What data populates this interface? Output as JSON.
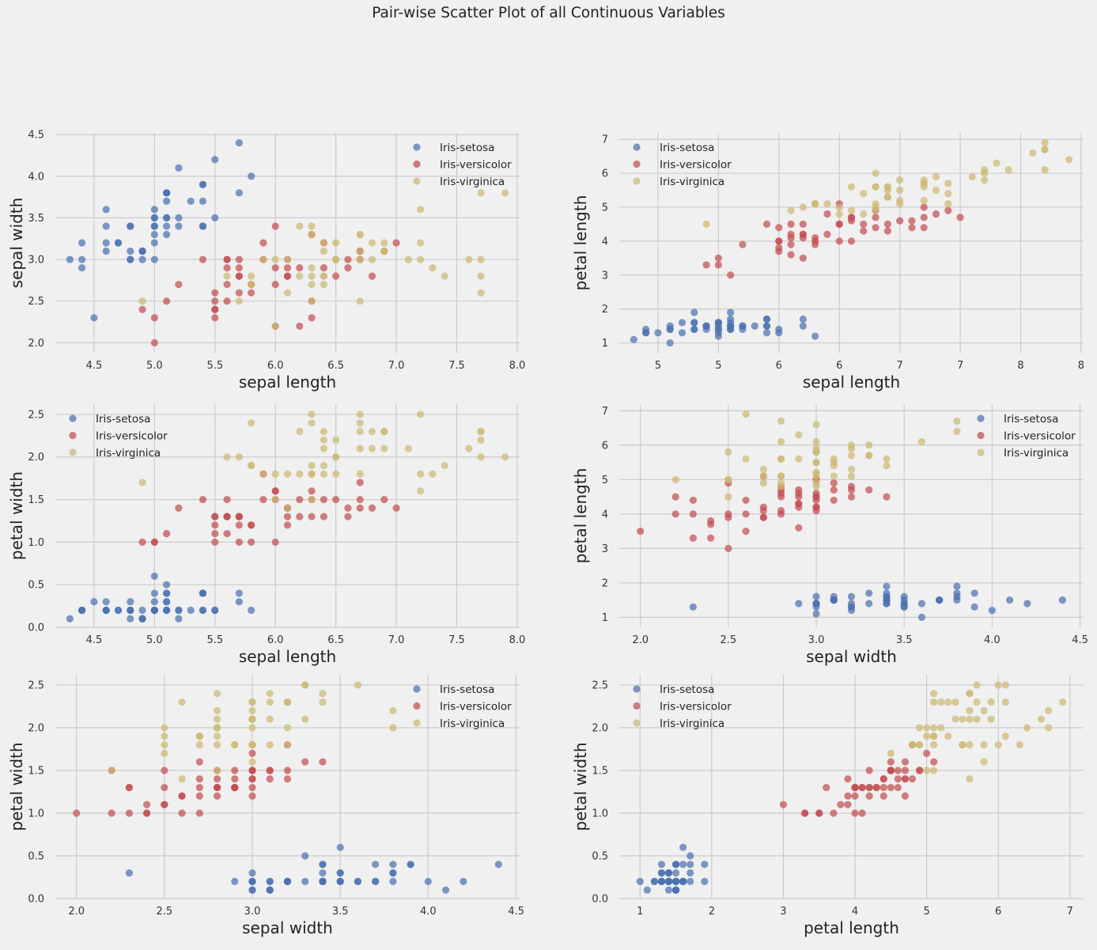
{
  "figure": {
    "title": "Pair-wise Scatter Plot of all Continuous Variables",
    "background": "#f0f0f0",
    "grid_color": "#cbcbcb",
    "colors": {
      "Iris-setosa": "#4c72b0",
      "Iris-versicolor": "#c44e52",
      "Iris-virginica": "#ccb974"
    }
  },
  "chart_data": [
    {
      "type": "scatter",
      "title": "",
      "xlabel": "sepal length",
      "ylabel": "sepal width",
      "x_field": "sepal_length",
      "y_field": "sepal_width",
      "xlim": [
        4.18,
        8.02
      ],
      "ylim": [
        1.88,
        4.52
      ],
      "xticks": [
        4.5,
        5.0,
        5.5,
        6.0,
        6.5,
        7.0,
        7.5,
        8.0
      ],
      "yticks": [
        2.0,
        2.5,
        3.0,
        3.5,
        4.0,
        4.5
      ],
      "tick_decimals": 1,
      "grid": true,
      "legend_position": "upper right",
      "legend": [
        "Iris-setosa",
        "Iris-versicolor",
        "Iris-virginica"
      ]
    },
    {
      "type": "scatter",
      "title": "",
      "xlabel": "sepal length",
      "ylabel": "petal length",
      "x_field": "sepal_length",
      "y_field": "petal_length",
      "xlim": [
        4.18,
        8.02
      ],
      "ylim": [
        0.71,
        7.19
      ],
      "xticks": [
        4.5,
        5.0,
        5.5,
        6.0,
        6.5,
        7.0,
        7.5,
        8.0
      ],
      "yticks": [
        1,
        2,
        3,
        4,
        5,
        6,
        7
      ],
      "tick_decimals": 0,
      "grid": true,
      "legend_position": "upper left",
      "legend": [
        "Iris-setosa",
        "Iris-versicolor",
        "Iris-virginica"
      ]
    },
    {
      "type": "scatter",
      "title": "",
      "xlabel": "sepal length",
      "ylabel": "petal width",
      "x_field": "sepal_length",
      "y_field": "petal_width",
      "xlim": [
        4.18,
        8.02
      ],
      "ylim": [
        0.0,
        2.62
      ],
      "xticks": [
        4.5,
        5.0,
        5.5,
        6.0,
        6.5,
        7.0,
        7.5,
        8.0
      ],
      "yticks": [
        0.0,
        0.5,
        1.0,
        1.5,
        2.0,
        2.5
      ],
      "tick_decimals": 1,
      "grid": true,
      "legend_position": "upper left",
      "legend": [
        "Iris-setosa",
        "Iris-versicolor",
        "Iris-virginica"
      ]
    },
    {
      "type": "scatter",
      "title": "",
      "xlabel": "sepal width",
      "ylabel": "petal length",
      "x_field": "sepal_width",
      "y_field": "petal_length",
      "xlim": [
        1.88,
        4.52
      ],
      "ylim": [
        0.71,
        7.19
      ],
      "xticks": [
        2.0,
        2.5,
        3.0,
        3.5,
        4.0,
        4.5
      ],
      "yticks": [
        1,
        2,
        3,
        4,
        5,
        6,
        7
      ],
      "tick_decimals": 1,
      "ytick_decimals": 0,
      "grid": true,
      "legend_position": "upper right",
      "legend": [
        "Iris-setosa",
        "Iris-versicolor",
        "Iris-virginica"
      ]
    },
    {
      "type": "scatter",
      "title": "",
      "xlabel": "sepal width",
      "ylabel": "petal width",
      "x_field": "sepal_width",
      "y_field": "petal_width",
      "xlim": [
        1.88,
        4.52
      ],
      "ylim": [
        0.0,
        2.62
      ],
      "xticks": [
        2.0,
        2.5,
        3.0,
        3.5,
        4.0,
        4.5
      ],
      "yticks": [
        0.0,
        0.5,
        1.0,
        1.5,
        2.0,
        2.5
      ],
      "tick_decimals": 1,
      "grid": true,
      "legend_position": "upper right",
      "legend": [
        "Iris-setosa",
        "Iris-versicolor",
        "Iris-virginica"
      ]
    },
    {
      "type": "scatter",
      "title": "",
      "xlabel": "petal length",
      "ylabel": "petal width",
      "x_field": "petal_length",
      "y_field": "petal_width",
      "xlim": [
        0.71,
        7.19
      ],
      "ylim": [
        0.0,
        2.62
      ],
      "xticks": [
        1,
        2,
        3,
        4,
        5,
        6,
        7
      ],
      "yticks": [
        0.0,
        0.5,
        1.0,
        1.5,
        2.0,
        2.5
      ],
      "tick_decimals": 0,
      "ytick_decimals": 1,
      "grid": true,
      "legend_position": "upper left",
      "legend": [
        "Iris-setosa",
        "Iris-versicolor",
        "Iris-virginica"
      ]
    }
  ],
  "dataset": {
    "fields": [
      "sepal_length",
      "sepal_width",
      "petal_length",
      "petal_width"
    ],
    "series": [
      {
        "name": "Iris-setosa",
        "points": [
          [
            5.1,
            3.5,
            1.4,
            0.2
          ],
          [
            4.9,
            3.0,
            1.4,
            0.2
          ],
          [
            4.7,
            3.2,
            1.3,
            0.2
          ],
          [
            4.6,
            3.1,
            1.5,
            0.2
          ],
          [
            5.0,
            3.6,
            1.4,
            0.2
          ],
          [
            5.4,
            3.9,
            1.7,
            0.4
          ],
          [
            4.6,
            3.4,
            1.4,
            0.3
          ],
          [
            5.0,
            3.4,
            1.5,
            0.2
          ],
          [
            4.4,
            2.9,
            1.4,
            0.2
          ],
          [
            4.9,
            3.1,
            1.5,
            0.1
          ],
          [
            5.4,
            3.7,
            1.5,
            0.2
          ],
          [
            4.8,
            3.4,
            1.6,
            0.2
          ],
          [
            4.8,
            3.0,
            1.4,
            0.1
          ],
          [
            4.3,
            3.0,
            1.1,
            0.1
          ],
          [
            5.8,
            4.0,
            1.2,
            0.2
          ],
          [
            5.7,
            4.4,
            1.5,
            0.4
          ],
          [
            5.4,
            3.9,
            1.3,
            0.4
          ],
          [
            5.1,
            3.5,
            1.4,
            0.3
          ],
          [
            5.7,
            3.8,
            1.7,
            0.3
          ],
          [
            5.1,
            3.8,
            1.5,
            0.3
          ],
          [
            5.4,
            3.4,
            1.7,
            0.2
          ],
          [
            5.1,
            3.7,
            1.5,
            0.4
          ],
          [
            4.6,
            3.6,
            1.0,
            0.2
          ],
          [
            5.1,
            3.3,
            1.7,
            0.5
          ],
          [
            4.8,
            3.4,
            1.9,
            0.2
          ],
          [
            5.0,
            3.0,
            1.6,
            0.2
          ],
          [
            5.0,
            3.4,
            1.6,
            0.4
          ],
          [
            5.2,
            3.5,
            1.5,
            0.2
          ],
          [
            5.2,
            3.4,
            1.4,
            0.2
          ],
          [
            4.7,
            3.2,
            1.6,
            0.2
          ],
          [
            4.8,
            3.1,
            1.6,
            0.2
          ],
          [
            5.4,
            3.4,
            1.5,
            0.4
          ],
          [
            5.2,
            4.1,
            1.5,
            0.1
          ],
          [
            5.5,
            4.2,
            1.4,
            0.2
          ],
          [
            4.9,
            3.1,
            1.5,
            0.1
          ],
          [
            5.0,
            3.2,
            1.2,
            0.2
          ],
          [
            5.5,
            3.5,
            1.3,
            0.2
          ],
          [
            4.9,
            3.1,
            1.5,
            0.1
          ],
          [
            4.4,
            3.0,
            1.3,
            0.2
          ],
          [
            5.1,
            3.4,
            1.5,
            0.2
          ],
          [
            5.0,
            3.5,
            1.3,
            0.3
          ],
          [
            4.5,
            2.3,
            1.3,
            0.3
          ],
          [
            4.4,
            3.2,
            1.3,
            0.2
          ],
          [
            5.0,
            3.5,
            1.6,
            0.6
          ],
          [
            5.1,
            3.8,
            1.9,
            0.4
          ],
          [
            4.8,
            3.0,
            1.4,
            0.3
          ],
          [
            5.1,
            3.8,
            1.6,
            0.2
          ],
          [
            4.6,
            3.2,
            1.4,
            0.2
          ],
          [
            5.3,
            3.7,
            1.5,
            0.2
          ],
          [
            5.0,
            3.3,
            1.4,
            0.2
          ]
        ]
      },
      {
        "name": "Iris-versicolor",
        "points": [
          [
            7.0,
            3.2,
            4.7,
            1.4
          ],
          [
            6.4,
            3.2,
            4.5,
            1.5
          ],
          [
            6.9,
            3.1,
            4.9,
            1.5
          ],
          [
            5.5,
            2.3,
            4.0,
            1.3
          ],
          [
            6.5,
            2.8,
            4.6,
            1.5
          ],
          [
            5.7,
            2.8,
            4.5,
            1.3
          ],
          [
            6.3,
            3.3,
            4.7,
            1.6
          ],
          [
            4.9,
            2.4,
            3.3,
            1.0
          ],
          [
            6.6,
            2.9,
            4.6,
            1.3
          ],
          [
            5.2,
            2.7,
            3.9,
            1.4
          ],
          [
            5.0,
            2.0,
            3.5,
            1.0
          ],
          [
            5.9,
            3.0,
            4.2,
            1.5
          ],
          [
            6.0,
            2.2,
            4.0,
            1.0
          ],
          [
            6.1,
            2.9,
            4.7,
            1.4
          ],
          [
            5.6,
            2.9,
            3.6,
            1.3
          ],
          [
            6.7,
            3.1,
            4.4,
            1.4
          ],
          [
            5.6,
            3.0,
            4.5,
            1.5
          ],
          [
            5.8,
            2.7,
            4.1,
            1.0
          ],
          [
            6.2,
            2.2,
            4.5,
            1.5
          ],
          [
            5.6,
            2.5,
            3.9,
            1.1
          ],
          [
            5.9,
            3.2,
            4.8,
            1.8
          ],
          [
            6.1,
            2.8,
            4.0,
            1.3
          ],
          [
            6.3,
            2.5,
            4.9,
            1.5
          ],
          [
            6.1,
            2.8,
            4.7,
            1.2
          ],
          [
            6.4,
            2.9,
            4.3,
            1.3
          ],
          [
            6.6,
            3.0,
            4.4,
            1.4
          ],
          [
            6.8,
            2.8,
            4.8,
            1.4
          ],
          [
            6.7,
            3.0,
            5.0,
            1.7
          ],
          [
            6.0,
            2.9,
            4.5,
            1.5
          ],
          [
            5.7,
            2.6,
            3.5,
            1.0
          ],
          [
            5.5,
            2.4,
            3.8,
            1.1
          ],
          [
            5.5,
            2.4,
            3.7,
            1.0
          ],
          [
            5.8,
            2.7,
            3.9,
            1.2
          ],
          [
            6.0,
            2.7,
            5.1,
            1.6
          ],
          [
            5.4,
            3.0,
            4.5,
            1.5
          ],
          [
            6.0,
            3.4,
            4.5,
            1.6
          ],
          [
            6.7,
            3.1,
            4.7,
            1.5
          ],
          [
            6.3,
            2.3,
            4.4,
            1.3
          ],
          [
            5.6,
            3.0,
            4.1,
            1.3
          ],
          [
            5.5,
            2.5,
            4.0,
            1.3
          ],
          [
            5.5,
            2.6,
            4.4,
            1.2
          ],
          [
            6.1,
            3.0,
            4.6,
            1.4
          ],
          [
            5.8,
            2.6,
            4.0,
            1.2
          ],
          [
            5.0,
            2.3,
            3.3,
            1.0
          ],
          [
            5.6,
            2.7,
            4.2,
            1.3
          ],
          [
            5.7,
            3.0,
            4.2,
            1.2
          ],
          [
            5.7,
            2.9,
            4.2,
            1.3
          ],
          [
            6.2,
            2.9,
            4.3,
            1.3
          ],
          [
            5.1,
            2.5,
            3.0,
            1.1
          ],
          [
            5.7,
            2.8,
            4.1,
            1.3
          ]
        ]
      },
      {
        "name": "Iris-virginica",
        "points": [
          [
            6.3,
            3.3,
            6.0,
            2.5
          ],
          [
            5.8,
            2.7,
            5.1,
            1.9
          ],
          [
            7.1,
            3.0,
            5.9,
            2.1
          ],
          [
            6.3,
            2.9,
            5.6,
            1.8
          ],
          [
            6.5,
            3.0,
            5.8,
            2.2
          ],
          [
            7.6,
            3.0,
            6.6,
            2.1
          ],
          [
            4.9,
            2.5,
            4.5,
            1.7
          ],
          [
            7.3,
            2.9,
            6.3,
            1.8
          ],
          [
            6.7,
            2.5,
            5.8,
            1.8
          ],
          [
            7.2,
            3.6,
            6.1,
            2.5
          ],
          [
            6.5,
            3.2,
            5.1,
            2.0
          ],
          [
            6.4,
            2.7,
            5.3,
            1.9
          ],
          [
            6.8,
            3.0,
            5.5,
            2.1
          ],
          [
            5.7,
            2.5,
            5.0,
            2.0
          ],
          [
            5.8,
            2.8,
            5.1,
            2.4
          ],
          [
            6.4,
            3.2,
            5.3,
            2.3
          ],
          [
            6.5,
            3.0,
            5.5,
            1.8
          ],
          [
            7.7,
            3.8,
            6.7,
            2.2
          ],
          [
            7.7,
            2.6,
            6.9,
            2.3
          ],
          [
            6.0,
            2.2,
            5.0,
            1.5
          ],
          [
            6.9,
            3.2,
            5.7,
            2.3
          ],
          [
            5.6,
            2.8,
            4.9,
            2.0
          ],
          [
            7.7,
            2.8,
            6.7,
            2.0
          ],
          [
            6.3,
            2.7,
            4.9,
            1.8
          ],
          [
            6.7,
            3.3,
            5.7,
            2.1
          ],
          [
            7.2,
            3.2,
            6.0,
            1.8
          ],
          [
            6.2,
            2.8,
            4.8,
            1.8
          ],
          [
            6.1,
            3.0,
            4.9,
            1.8
          ],
          [
            6.4,
            2.8,
            5.6,
            2.1
          ],
          [
            7.2,
            3.0,
            5.8,
            1.6
          ],
          [
            7.4,
            2.8,
            6.1,
            1.9
          ],
          [
            7.9,
            3.8,
            6.4,
            2.0
          ],
          [
            6.4,
            2.8,
            5.6,
            2.2
          ],
          [
            6.3,
            2.8,
            5.1,
            1.5
          ],
          [
            6.1,
            2.6,
            5.6,
            1.4
          ],
          [
            7.7,
            3.0,
            6.1,
            2.3
          ],
          [
            6.3,
            3.4,
            5.6,
            2.4
          ],
          [
            6.4,
            3.1,
            5.5,
            1.8
          ],
          [
            6.0,
            3.0,
            4.8,
            1.8
          ],
          [
            6.9,
            3.1,
            5.4,
            2.1
          ],
          [
            6.7,
            3.1,
            5.6,
            2.4
          ],
          [
            6.9,
            3.1,
            5.1,
            2.3
          ],
          [
            5.8,
            2.7,
            5.1,
            1.9
          ],
          [
            6.8,
            3.2,
            5.9,
            2.3
          ],
          [
            6.7,
            3.3,
            5.7,
            2.5
          ],
          [
            6.7,
            3.0,
            5.2,
            2.3
          ],
          [
            6.3,
            2.5,
            5.0,
            1.9
          ],
          [
            6.5,
            3.0,
            5.2,
            2.0
          ],
          [
            6.2,
            3.4,
            5.4,
            2.3
          ],
          [
            5.9,
            3.0,
            5.1,
            1.8
          ]
        ]
      }
    ]
  }
}
